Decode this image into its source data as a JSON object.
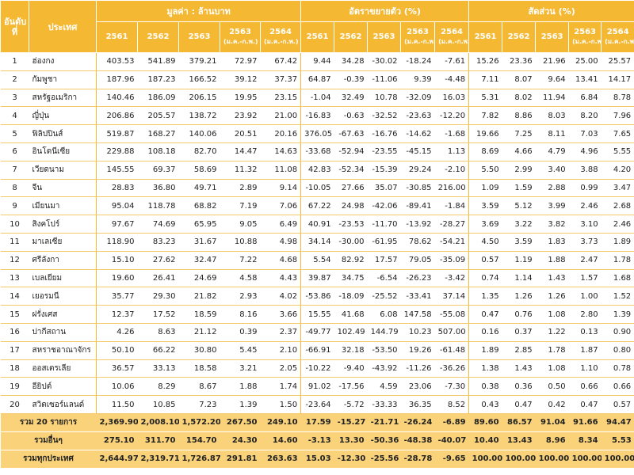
{
  "header": {
    "rank": "อันดับที่",
    "country": "ประเทศ",
    "groups": [
      "มูลค่า : ล้านบาท",
      "อัตราขยายตัว (%)",
      "สัดส่วน (%)"
    ],
    "years": [
      {
        "year": "2561",
        "sub": ""
      },
      {
        "year": "2562",
        "sub": ""
      },
      {
        "year": "2563",
        "sub": ""
      },
      {
        "year": "2563",
        "sub": "(ม.ค.-ก.พ.)"
      },
      {
        "year": "2564",
        "sub": "(ม.ค.-ก.พ.)"
      }
    ]
  },
  "rows": [
    {
      "rank": "1",
      "country": "ฮ่องกง",
      "value": [
        "403.53",
        "541.89",
        "379.21",
        "72.97",
        "67.42"
      ],
      "growth": [
        "9.44",
        "34.28",
        "-30.02",
        "-18.24",
        "-7.61"
      ],
      "share": [
        "15.26",
        "23.36",
        "21.96",
        "25.00",
        "25.57"
      ]
    },
    {
      "rank": "2",
      "country": "กัมพูชา",
      "value": [
        "187.96",
        "187.23",
        "166.52",
        "39.12",
        "37.37"
      ],
      "growth": [
        "64.87",
        "-0.39",
        "-11.06",
        "9.39",
        "-4.48"
      ],
      "share": [
        "7.11",
        "8.07",
        "9.64",
        "13.41",
        "14.17"
      ]
    },
    {
      "rank": "3",
      "country": "สหรัฐอเมริกา",
      "value": [
        "140.46",
        "186.09",
        "206.15",
        "19.95",
        "23.15"
      ],
      "growth": [
        "-1.04",
        "32.49",
        "10.78",
        "-32.09",
        "16.03"
      ],
      "share": [
        "5.31",
        "8.02",
        "11.94",
        "6.84",
        "8.78"
      ]
    },
    {
      "rank": "4",
      "country": "ญี่ปุ่น",
      "value": [
        "206.86",
        "205.57",
        "138.72",
        "23.92",
        "21.00"
      ],
      "growth": [
        "-16.83",
        "-0.63",
        "-32.52",
        "-23.63",
        "-12.20"
      ],
      "share": [
        "7.82",
        "8.86",
        "8.03",
        "8.20",
        "7.96"
      ]
    },
    {
      "rank": "5",
      "country": "ฟิลิปปินส์",
      "value": [
        "519.87",
        "168.27",
        "140.06",
        "20.51",
        "20.16"
      ],
      "growth": [
        "376.05",
        "-67.63",
        "-16.76",
        "-14.62",
        "-1.68"
      ],
      "share": [
        "19.66",
        "7.25",
        "8.11",
        "7.03",
        "7.65"
      ]
    },
    {
      "rank": "6",
      "country": "อินโดนีเซีย",
      "value": [
        "229.88",
        "108.18",
        "82.70",
        "14.47",
        "14.63"
      ],
      "growth": [
        "-33.68",
        "-52.94",
        "-23.55",
        "-45.15",
        "1.13"
      ],
      "share": [
        "8.69",
        "4.66",
        "4.79",
        "4.96",
        "5.55"
      ]
    },
    {
      "rank": "7",
      "country": "เวียดนาม",
      "value": [
        "145.55",
        "69.37",
        "58.69",
        "11.32",
        "11.08"
      ],
      "growth": [
        "42.83",
        "-52.34",
        "-15.39",
        "29.24",
        "-2.10"
      ],
      "share": [
        "5.50",
        "2.99",
        "3.40",
        "3.88",
        "4.20"
      ]
    },
    {
      "rank": "8",
      "country": "จีน",
      "value": [
        "28.83",
        "36.80",
        "49.71",
        "2.89",
        "9.14"
      ],
      "growth": [
        "-10.05",
        "27.66",
        "35.07",
        "-30.85",
        "216.00"
      ],
      "share": [
        "1.09",
        "1.59",
        "2.88",
        "0.99",
        "3.47"
      ]
    },
    {
      "rank": "9",
      "country": "เมียนมา",
      "value": [
        "95.04",
        "118.78",
        "68.82",
        "7.19",
        "7.06"
      ],
      "growth": [
        "67.22",
        "24.98",
        "-42.06",
        "-89.41",
        "-1.84"
      ],
      "share": [
        "3.59",
        "5.12",
        "3.99",
        "2.46",
        "2.68"
      ]
    },
    {
      "rank": "10",
      "country": "สิงคโปร์",
      "value": [
        "97.67",
        "74.69",
        "65.95",
        "9.05",
        "6.49"
      ],
      "growth": [
        "40.91",
        "-23.53",
        "-11.70",
        "-13.92",
        "-28.27"
      ],
      "share": [
        "3.69",
        "3.22",
        "3.82",
        "3.10",
        "2.46"
      ]
    },
    {
      "rank": "11",
      "country": "มาเลเซีย",
      "value": [
        "118.90",
        "83.23",
        "31.67",
        "10.88",
        "4.98"
      ],
      "growth": [
        "34.14",
        "-30.00",
        "-61.95",
        "78.62",
        "-54.21"
      ],
      "share": [
        "4.50",
        "3.59",
        "1.83",
        "3.73",
        "1.89"
      ]
    },
    {
      "rank": "12",
      "country": "ศรีลังกา",
      "value": [
        "15.10",
        "27.62",
        "32.47",
        "7.22",
        "4.68"
      ],
      "growth": [
        "5.54",
        "82.92",
        "17.57",
        "79.05",
        "-35.09"
      ],
      "share": [
        "0.57",
        "1.19",
        "1.88",
        "2.47",
        "1.78"
      ]
    },
    {
      "rank": "13",
      "country": "เบลเยียม",
      "value": [
        "19.60",
        "26.41",
        "24.69",
        "4.58",
        "4.43"
      ],
      "growth": [
        "39.87",
        "34.75",
        "-6.54",
        "-26.23",
        "-3.42"
      ],
      "share": [
        "0.74",
        "1.14",
        "1.43",
        "1.57",
        "1.68"
      ]
    },
    {
      "rank": "14",
      "country": "เยอรมนี",
      "value": [
        "35.77",
        "29.30",
        "21.82",
        "2.93",
        "4.02"
      ],
      "growth": [
        "-53.86",
        "-18.09",
        "-25.52",
        "-33.41",
        "37.14"
      ],
      "share": [
        "1.35",
        "1.26",
        "1.26",
        "1.00",
        "1.52"
      ]
    },
    {
      "rank": "15",
      "country": "ฝรั่งเศส",
      "value": [
        "12.37",
        "17.52",
        "18.59",
        "8.16",
        "3.66"
      ],
      "growth": [
        "15.55",
        "41.68",
        "6.08",
        "147.58",
        "-55.08"
      ],
      "share": [
        "0.47",
        "0.76",
        "1.08",
        "2.80",
        "1.39"
      ]
    },
    {
      "rank": "16",
      "country": "ปากีสถาน",
      "value": [
        "4.26",
        "8.63",
        "21.12",
        "0.39",
        "2.37"
      ],
      "growth": [
        "-49.77",
        "102.49",
        "144.79",
        "10.23",
        "507.00"
      ],
      "share": [
        "0.16",
        "0.37",
        "1.22",
        "0.13",
        "0.90"
      ]
    },
    {
      "rank": "17",
      "country": "สหราชอาณาจักร",
      "value": [
        "50.10",
        "66.22",
        "30.80",
        "5.45",
        "2.10"
      ],
      "growth": [
        "-66.91",
        "32.18",
        "-53.50",
        "19.26",
        "-61.48"
      ],
      "share": [
        "1.89",
        "2.85",
        "1.78",
        "1.87",
        "0.80"
      ]
    },
    {
      "rank": "18",
      "country": "ออสเตรเลีย",
      "value": [
        "36.57",
        "33.13",
        "18.58",
        "3.21",
        "2.05"
      ],
      "growth": [
        "-10.22",
        "-9.40",
        "-43.92",
        "-11.26",
        "-36.26"
      ],
      "share": [
        "1.38",
        "1.43",
        "1.08",
        "1.10",
        "0.78"
      ]
    },
    {
      "rank": "19",
      "country": "อียิปต์",
      "value": [
        "10.06",
        "8.29",
        "8.67",
        "1.88",
        "1.74"
      ],
      "growth": [
        "91.02",
        "-17.56",
        "4.59",
        "23.06",
        "-7.30"
      ],
      "share": [
        "0.38",
        "0.36",
        "0.50",
        "0.66",
        "0.66"
      ]
    },
    {
      "rank": "20",
      "country": "สวิตเซอร์แลนด์",
      "value": [
        "11.50",
        "10.85",
        "7.23",
        "1.39",
        "1.50"
      ],
      "growth": [
        "-23.64",
        "-5.72",
        "-33.33",
        "36.35",
        "8.52"
      ],
      "share": [
        "0.43",
        "0.47",
        "0.42",
        "0.47",
        "0.57"
      ]
    }
  ],
  "totals": [
    {
      "label": "รวม 20 รายการ",
      "value": [
        "2,369.90",
        "2,008.10",
        "1,572.20",
        "267.50",
        "249.10"
      ],
      "growth": [
        "17.59",
        "-15.27",
        "-21.71",
        "-26.24",
        "-6.89"
      ],
      "share": [
        "89.60",
        "86.57",
        "91.04",
        "91.66",
        "94.47"
      ]
    },
    {
      "label": "รวมอื่นๆ",
      "value": [
        "275.10",
        "311.70",
        "154.70",
        "24.30",
        "14.60"
      ],
      "growth": [
        "-3.13",
        "13.30",
        "-50.36",
        "-48.38",
        "-40.07"
      ],
      "share": [
        "10.40",
        "13.43",
        "8.96",
        "8.34",
        "5.53"
      ]
    },
    {
      "label": "รวมทุกประเทศ",
      "value": [
        "2,644.97",
        "2,319.71",
        "1,726.87",
        "291.81",
        "263.63"
      ],
      "growth": [
        "15.03",
        "-12.30",
        "-25.56",
        "-28.78",
        "-9.65"
      ],
      "share": [
        "100.00",
        "100.00",
        "100.00",
        "100.00",
        "100.00"
      ]
    }
  ],
  "colors": {
    "header": "#f5b833",
    "total": "#f9d27a"
  }
}
